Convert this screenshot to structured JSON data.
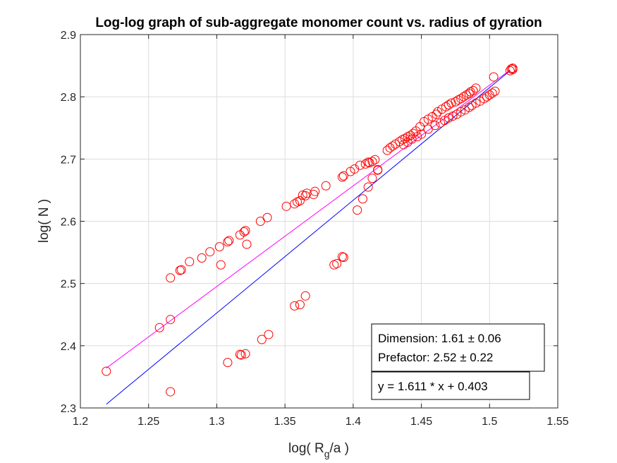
{
  "chart_data": {
    "type": "scatter",
    "title": "Log-log graph of sub-aggregate monomer count vs. radius of gyration",
    "xlabel": {
      "prefix": "log( R",
      "subscript": "g",
      "suffix": "/a )"
    },
    "ylabel": "log( N )",
    "xlim": [
      1.2,
      1.55
    ],
    "ylim": [
      2.3,
      2.9
    ],
    "xticks": [
      "1.2",
      "1.25",
      "1.3",
      "1.35",
      "1.4",
      "1.45",
      "1.5",
      "1.55"
    ],
    "yticks": [
      "2.3",
      "2.4",
      "2.5",
      "2.6",
      "2.7",
      "2.8",
      "2.9"
    ],
    "grid": true,
    "colors": {
      "points": "#ff0000",
      "fit_magenta": "#ff00ff",
      "fit_blue": "#0000ff",
      "grid": "#dcdcdc",
      "axes": "#262626"
    },
    "annotations": {
      "stats_box": [
        "Dimension: 1.61 ± 0.06",
        "Prefactor: 2.52 ± 0.22"
      ],
      "equation_box": "y = 1.611 * x + 0.403"
    },
    "lines": [
      {
        "color": "magenta",
        "x": [
          1.219,
          1.515
        ],
        "y": [
          2.364,
          2.843
        ]
      },
      {
        "color": "blue",
        "x": [
          1.219,
          1.515
        ],
        "y": [
          2.306,
          2.842
        ]
      }
    ],
    "series": [
      {
        "marker": "circle",
        "x": [
          1.219,
          1.258,
          1.266,
          1.266,
          1.266,
          1.273,
          1.274,
          1.28,
          1.289,
          1.295,
          1.302,
          1.303,
          1.308,
          1.309,
          1.308,
          1.317,
          1.32,
          1.321,
          1.322,
          1.321,
          1.318,
          1.317,
          1.332,
          1.333,
          1.337,
          1.338,
          1.351,
          1.357,
          1.359,
          1.361,
          1.365,
          1.363,
          1.366,
          1.372,
          1.371,
          1.38,
          1.357,
          1.361,
          1.365,
          1.386,
          1.388,
          1.392,
          1.393,
          1.392,
          1.393,
          1.398,
          1.401,
          1.403,
          1.407,
          1.405,
          1.409,
          1.411,
          1.412,
          1.414,
          1.416,
          1.414,
          1.411,
          1.418,
          1.418,
          1.425,
          1.427,
          1.429,
          1.431,
          1.434,
          1.436,
          1.438,
          1.44,
          1.442,
          1.444,
          1.446,
          1.449,
          1.452,
          1.455,
          1.458,
          1.461,
          1.462,
          1.465,
          1.468,
          1.47,
          1.472,
          1.475,
          1.477,
          1.479,
          1.481,
          1.483,
          1.485,
          1.486,
          1.488,
          1.49,
          1.437,
          1.44,
          1.443,
          1.447,
          1.45,
          1.455,
          1.46,
          1.464,
          1.467,
          1.47,
          1.473,
          1.476,
          1.479,
          1.482,
          1.485,
          1.487,
          1.49,
          1.493,
          1.496,
          1.498,
          1.5,
          1.502,
          1.504,
          1.503,
          1.515,
          1.516,
          1.517,
          1.517
        ],
        "y": [
          2.359,
          2.429,
          2.442,
          2.509,
          2.326,
          2.521,
          2.522,
          2.535,
          2.541,
          2.551,
          2.559,
          2.53,
          2.567,
          2.569,
          2.373,
          2.578,
          2.583,
          2.585,
          2.563,
          2.387,
          2.385,
          2.386,
          2.6,
          2.41,
          2.606,
          2.418,
          2.624,
          2.628,
          2.631,
          2.633,
          2.641,
          2.642,
          2.645,
          2.648,
          2.643,
          2.657,
          2.464,
          2.466,
          2.48,
          2.53,
          2.532,
          2.543,
          2.542,
          2.671,
          2.673,
          2.68,
          2.684,
          2.618,
          2.636,
          2.69,
          2.692,
          2.655,
          2.694,
          2.696,
          2.699,
          2.669,
          2.695,
          2.683,
          2.682,
          2.714,
          2.718,
          2.721,
          2.724,
          2.728,
          2.731,
          2.733,
          2.736,
          2.738,
          2.741,
          2.745,
          2.752,
          2.76,
          2.764,
          2.768,
          2.772,
          2.776,
          2.78,
          2.784,
          2.787,
          2.79,
          2.792,
          2.795,
          2.797,
          2.8,
          2.803,
          2.805,
          2.808,
          2.81,
          2.814,
          2.723,
          2.727,
          2.732,
          2.736,
          2.74,
          2.748,
          2.754,
          2.758,
          2.762,
          2.766,
          2.769,
          2.772,
          2.776,
          2.779,
          2.783,
          2.786,
          2.79,
          2.793,
          2.797,
          2.8,
          2.803,
          2.806,
          2.809,
          2.832,
          2.842,
          2.845,
          2.846,
          2.844
        ]
      }
    ]
  }
}
